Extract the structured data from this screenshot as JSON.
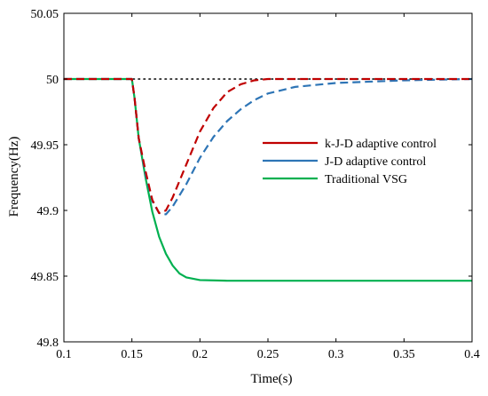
{
  "chart_data": {
    "type": "line",
    "title": "",
    "xlabel": "Time(s)",
    "ylabel": "Frequency(Hz)",
    "xlim": [
      0.1,
      0.4
    ],
    "ylim": [
      49.8,
      50.05
    ],
    "x_ticks": [
      "0.1",
      "0.15",
      "0.2",
      "0.25",
      "0.3",
      "0.35",
      "0.4"
    ],
    "y_ticks": [
      "49.8",
      "49.85",
      "49.9",
      "49.95",
      "50",
      "50.05"
    ],
    "grid": false,
    "legend_position": "right",
    "reference_line": {
      "y": 50,
      "style": "dotted",
      "color": "#000000"
    },
    "series": [
      {
        "name": "k-J-D adaptive control",
        "color": "#c00000",
        "style": "dashed",
        "points": [
          [
            0.1,
            50.0
          ],
          [
            0.15,
            50.0
          ],
          [
            0.152,
            49.985
          ],
          [
            0.155,
            49.955
          ],
          [
            0.16,
            49.93
          ],
          [
            0.165,
            49.908
          ],
          [
            0.17,
            49.898
          ],
          [
            0.175,
            49.9
          ],
          [
            0.18,
            49.91
          ],
          [
            0.19,
            49.935
          ],
          [
            0.2,
            49.96
          ],
          [
            0.21,
            49.978
          ],
          [
            0.22,
            49.99
          ],
          [
            0.23,
            49.996
          ],
          [
            0.24,
            49.999
          ],
          [
            0.25,
            50.0
          ],
          [
            0.3,
            50.0
          ],
          [
            0.4,
            50.0
          ]
        ]
      },
      {
        "name": "J-D adaptive control",
        "color": "#2e75b6",
        "style": "dashed",
        "points": [
          [
            0.1,
            50.0
          ],
          [
            0.15,
            50.0
          ],
          [
            0.152,
            49.985
          ],
          [
            0.155,
            49.955
          ],
          [
            0.16,
            49.928
          ],
          [
            0.165,
            49.907
          ],
          [
            0.17,
            49.898
          ],
          [
            0.175,
            49.897
          ],
          [
            0.18,
            49.903
          ],
          [
            0.19,
            49.92
          ],
          [
            0.2,
            49.94
          ],
          [
            0.21,
            49.956
          ],
          [
            0.22,
            49.968
          ],
          [
            0.23,
            49.977
          ],
          [
            0.24,
            49.984
          ],
          [
            0.25,
            49.989
          ],
          [
            0.27,
            49.994
          ],
          [
            0.3,
            49.997
          ],
          [
            0.35,
            49.999
          ],
          [
            0.4,
            50.0
          ]
        ]
      },
      {
        "name": "Traditional VSG",
        "color": "#00b050",
        "style": "solid",
        "points": [
          [
            0.1,
            50.0
          ],
          [
            0.15,
            50.0
          ],
          [
            0.152,
            49.985
          ],
          [
            0.155,
            49.955
          ],
          [
            0.16,
            49.925
          ],
          [
            0.165,
            49.899
          ],
          [
            0.17,
            49.88
          ],
          [
            0.175,
            49.867
          ],
          [
            0.18,
            49.858
          ],
          [
            0.185,
            49.852
          ],
          [
            0.19,
            49.849
          ],
          [
            0.2,
            49.847
          ],
          [
            0.22,
            49.8465
          ],
          [
            0.3,
            49.8465
          ],
          [
            0.4,
            49.8465
          ]
        ]
      }
    ]
  }
}
